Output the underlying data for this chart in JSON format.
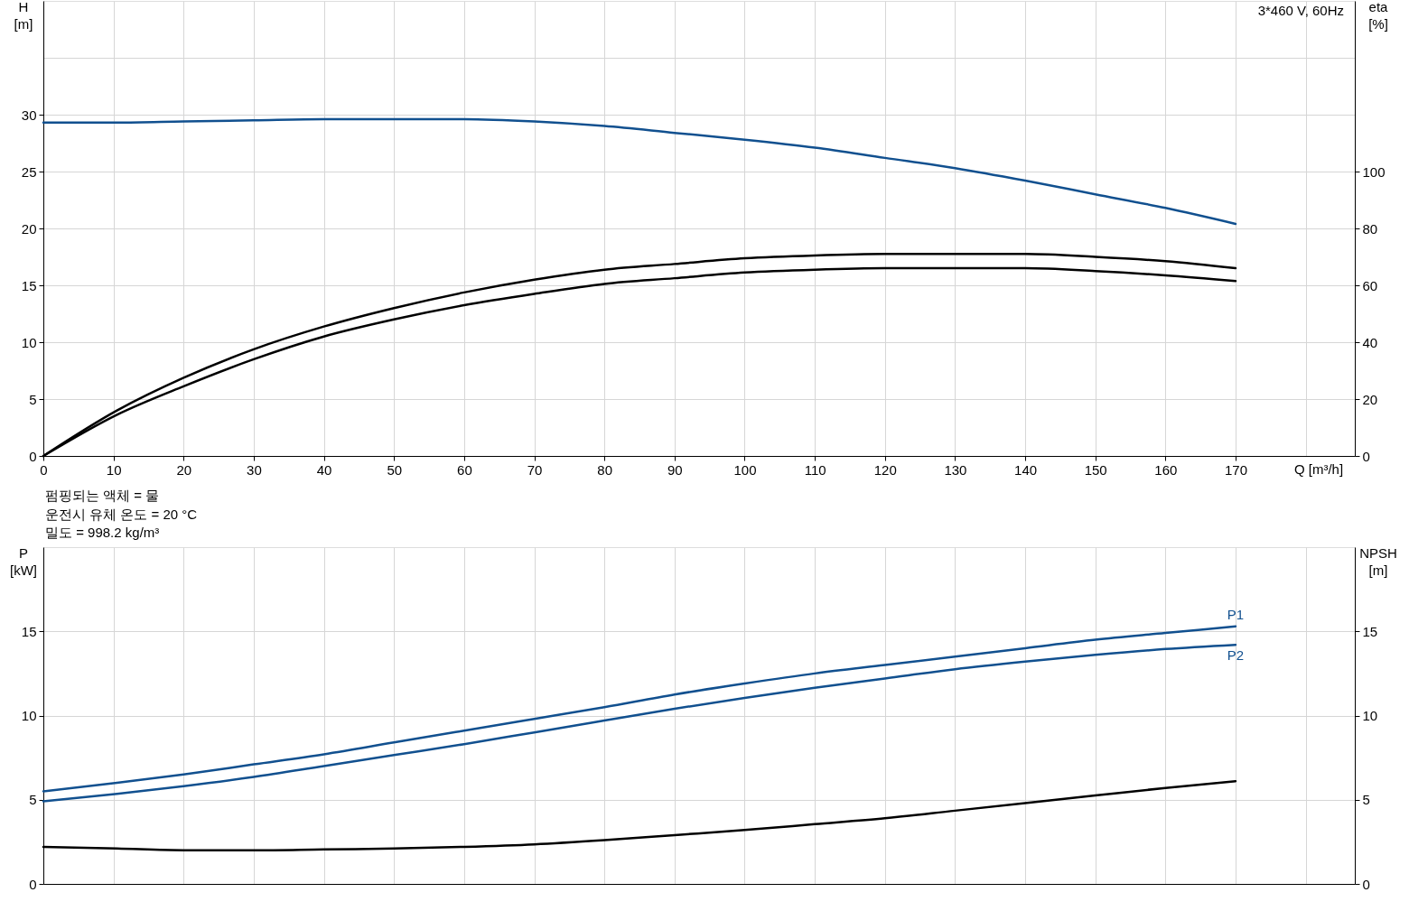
{
  "chart_data": [
    {
      "type": "line",
      "title": "3*460 V, 60Hz",
      "xlabel": "Q [m³/h]",
      "ylabel": "H [m]",
      "y2label": "eta [%]",
      "annotations": [
        "펌핑되는 액체 = 물",
        "운전시 유체 온도 = 20 °C",
        "밀도 = 998.2 kg/m³"
      ],
      "xlim": [
        0,
        187
      ],
      "xticks": [
        0,
        10,
        20,
        30,
        40,
        50,
        60,
        70,
        80,
        90,
        100,
        110,
        120,
        130,
        140,
        150,
        160,
        170,
        {
          "value": 180,
          "label": null
        }
      ],
      "ylim": [
        0,
        40
      ],
      "yticks": [
        0,
        5,
        10,
        15,
        20,
        25,
        30,
        {
          "value": 35,
          "label": null
        }
      ],
      "y2lim": [
        0,
        160
      ],
      "y2ticks": [
        0,
        20,
        40,
        60,
        80,
        100
      ],
      "grid": true,
      "x": [
        0,
        10.5,
        20,
        30,
        40,
        50,
        60,
        70,
        80,
        90,
        100,
        110,
        120,
        130,
        140,
        150,
        160,
        170
      ],
      "series": [
        {
          "color": "#11508f",
          "values": [
            29.3,
            29.3,
            29.4,
            29.5,
            29.6,
            29.6,
            29.6,
            29.4,
            29.0,
            28.4,
            27.8,
            27.1,
            26.2,
            25.3,
            24.2,
            23.0,
            21.8,
            20.4
          ]
        },
        {
          "color": "#000000",
          "axis": "y2",
          "values": [
            0,
            16,
            27.5,
            37.5,
            45.5,
            52,
            57.5,
            62,
            65.5,
            67.5,
            69.5,
            70.5,
            71,
            71,
            71,
            70,
            68.5,
            66
          ]
        },
        {
          "color": "#000000",
          "axis": "y2",
          "values": [
            0,
            14.5,
            24.5,
            34,
            42,
            48,
            53,
            57,
            60.5,
            62.5,
            64.5,
            65.5,
            66,
            66,
            66,
            65,
            63.5,
            61.5
          ]
        }
      ]
    },
    {
      "type": "line",
      "ylabel": "P [kW]",
      "y2label": "NPSH [m]",
      "xlim": [
        0,
        187
      ],
      "xticks": [
        0,
        10,
        20,
        30,
        40,
        50,
        60,
        70,
        80,
        90,
        100,
        110,
        120,
        130,
        140,
        150,
        160,
        170,
        {
          "value": 180,
          "label": null
        }
      ],
      "ylim": [
        0,
        20
      ],
      "yticks": [
        0,
        5,
        10,
        15
      ],
      "y2lim": [
        0,
        20
      ],
      "y2ticks": [
        0,
        5,
        10,
        15
      ],
      "tick_labels": "y",
      "grid": true,
      "x": [
        0,
        10.5,
        20,
        30,
        40,
        50,
        60,
        70,
        80,
        90,
        100,
        110,
        120,
        130,
        140,
        150,
        160,
        170
      ],
      "series": [
        {
          "name": "P1",
          "color": "#11508f",
          "values": [
            5.5,
            6.0,
            6.5,
            7.1,
            7.7,
            8.4,
            9.1,
            9.8,
            10.5,
            11.25,
            11.9,
            12.5,
            13.0,
            13.5,
            14.0,
            14.5,
            14.9,
            15.3
          ]
        },
        {
          "name": "P2",
          "color": "#11508f",
          "values": [
            4.9,
            5.35,
            5.8,
            6.35,
            7.0,
            7.65,
            8.3,
            9.0,
            9.7,
            10.4,
            11.05,
            11.65,
            12.2,
            12.75,
            13.2,
            13.6,
            13.95,
            14.2
          ]
        },
        {
          "color": "#000000",
          "axis": "y2",
          "values": [
            2.2,
            2.1,
            2.0,
            2.0,
            2.05,
            2.1,
            2.2,
            2.35,
            2.6,
            2.9,
            3.2,
            3.55,
            3.9,
            4.35,
            4.8,
            5.25,
            5.7,
            6.1
          ]
        }
      ]
    }
  ]
}
